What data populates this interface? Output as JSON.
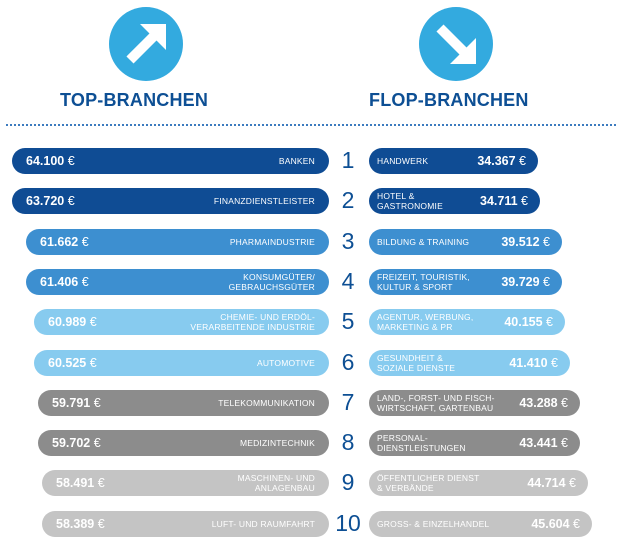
{
  "colors": {
    "dark_blue": "#0f4c94",
    "mid_blue": "#3d8fd0",
    "light_blue": "#87cbef",
    "dark_gray": "#8c8c8c",
    "light_gray": "#c4c4c4",
    "heading": "#0d4f94",
    "icon": "#33aadf"
  },
  "headings": {
    "top": "TOP-BRANCHEN",
    "flop": "FLOP-BRANCHEN"
  },
  "icons": {
    "top": "arrow-up-right-icon",
    "flop": "arrow-down-right-icon"
  },
  "chart_data": {
    "type": "bar",
    "title_left": "TOP-BRANCHEN",
    "title_right": "FLOP-BRANCHEN",
    "currency": "€",
    "ranks": [
      "1",
      "2",
      "3",
      "4",
      "5",
      "6",
      "7",
      "8",
      "9",
      "10"
    ],
    "top": [
      {
        "label": "BANKEN",
        "value_text": "64.100",
        "value": 64100,
        "tone": "dark_blue"
      },
      {
        "label": "FINANZDIENSTLEISTER",
        "value_text": "63.720",
        "value": 63720,
        "tone": "dark_blue"
      },
      {
        "label": "PHARMAINDUSTRIE",
        "value_text": "61.662",
        "value": 61662,
        "tone": "mid_blue"
      },
      {
        "label": "KONSUMGÜTER/\nGEBRAUCHSGÜTER",
        "value_text": "61.406",
        "value": 61406,
        "tone": "mid_blue"
      },
      {
        "label": "CHEMIE- UND ERDÖL-\nVERARBEITENDE INDUSTRIE",
        "value_text": "60.989",
        "value": 60989,
        "tone": "light_blue"
      },
      {
        "label": "AUTOMOTIVE",
        "value_text": "60.525",
        "value": 60525,
        "tone": "light_blue"
      },
      {
        "label": "TELEKOMMUNIKATION",
        "value_text": "59.791",
        "value": 59791,
        "tone": "dark_gray"
      },
      {
        "label": "MEDIZINTECHNIK",
        "value_text": "59.702",
        "value": 59702,
        "tone": "dark_gray"
      },
      {
        "label": "MASCHINEN- UND\nANLAGENBAU",
        "value_text": "58.491",
        "value": 58491,
        "tone": "light_gray"
      },
      {
        "label": "LUFT- UND RAUMFAHRT",
        "value_text": "58.389",
        "value": 58389,
        "tone": "light_gray"
      }
    ],
    "flop": [
      {
        "label": "HANDWERK",
        "value_text": "34.367",
        "value": 34367,
        "tone": "dark_blue"
      },
      {
        "label": "HOTEL &\nGASTRONOMIE",
        "value_text": "34.711",
        "value": 34711,
        "tone": "dark_blue"
      },
      {
        "label": "BILDUNG & TRAINING",
        "value_text": "39.512",
        "value": 39512,
        "tone": "mid_blue"
      },
      {
        "label": "FREIZEIT, TOURISTIK,\nKULTUR & SPORT",
        "value_text": "39.729",
        "value": 39729,
        "tone": "mid_blue"
      },
      {
        "label": "AGENTUR, WERBUNG,\nMARKETING & PR",
        "value_text": "40.155",
        "value": 40155,
        "tone": "light_blue"
      },
      {
        "label": "GESUNDHEIT &\nSOZIALE DIENSTE",
        "value_text": "41.410",
        "value": 41410,
        "tone": "light_blue"
      },
      {
        "label": "LAND-, FORST- UND FISCH-\nWIRTSCHAFT, GARTENBAU",
        "value_text": "43.288",
        "value": 43288,
        "tone": "dark_gray"
      },
      {
        "label": "PERSONAL-\nDIENSTLEISTUNGEN",
        "value_text": "43.441",
        "value": 43441,
        "tone": "dark_gray"
      },
      {
        "label": "ÖFFENTLICHER DIENST\n& VERBÄNDE",
        "value_text": "44.714",
        "value": 44714,
        "tone": "light_gray"
      },
      {
        "label": "GROSS- & EINZELHANDEL",
        "value_text": "45.604",
        "value": 45604,
        "tone": "light_gray"
      }
    ]
  }
}
